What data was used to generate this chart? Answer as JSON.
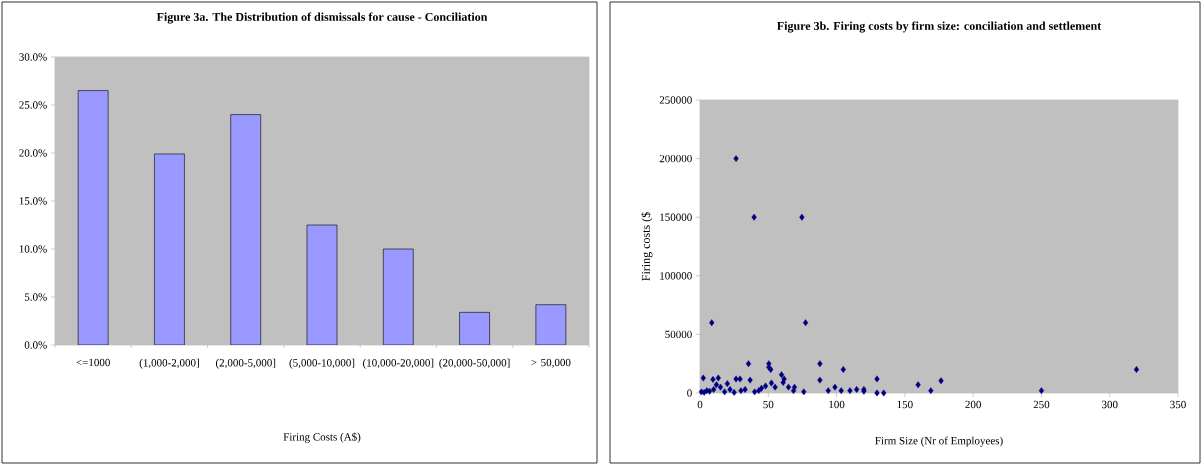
{
  "chart_data": [
    {
      "type": "bar",
      "title": "Figure 3a. The Distribution of dismissals for cause - Conciliation",
      "xlabel": "Firing Costs (A$)",
      "categories": [
        "<=1000",
        "(1,000-2,000]",
        "(2,000-5,000]",
        "(5,000-10,000]",
        "(10,000-20,000]",
        "(20,000-50,000]",
        "> 50,000"
      ],
      "values": [
        26.5,
        19.9,
        24.0,
        12.5,
        10.0,
        3.4,
        4.2
      ],
      "color": "#9999ff",
      "ylim": [
        0,
        30
      ],
      "yticks": [
        {
          "value": 0,
          "label": "0.0%"
        },
        {
          "value": 5,
          "label": "5.0%"
        },
        {
          "value": 10,
          "label": "10.0%"
        },
        {
          "value": 15,
          "label": "15.0%"
        },
        {
          "value": 20,
          "label": "20.0%"
        },
        {
          "value": 25,
          "label": "25.0%"
        },
        {
          "value": 30,
          "label": "30.0%"
        }
      ]
    },
    {
      "type": "scatter",
      "title": "Figure 3b. Firing costs by firm size: conciliation and settlement",
      "xlabel": "Firm Size (Nr of Employees)",
      "ylabel": "Firing costs ($",
      "x": [
        26.4,
        39.6,
        74.6,
        8.6,
        77.3,
        35.5,
        50.4,
        50.4,
        51.8,
        87.8,
        87.8,
        104.9,
        129.6,
        129.6,
        134.5,
        159.7,
        169,
        176.5,
        250,
        319.6,
        93.9,
        98.8,
        103.4,
        109.8,
        114.7,
        120,
        120,
        76,
        59.7,
        61.6,
        60.9,
        64.8,
        69.2,
        68.5,
        36.7,
        26.4,
        29.3,
        2.4,
        13.4,
        9.5,
        55,
        52.3,
        5,
        10,
        15,
        20,
        22,
        30,
        40,
        45,
        48,
        3,
        7,
        12,
        18,
        25,
        33,
        43,
        1
      ],
      "values": [
        200000,
        150000,
        150000,
        60000,
        60000,
        25000,
        25000,
        22000,
        20000,
        25000,
        11000,
        20000,
        12000,
        0,
        0,
        7000,
        2000,
        10500,
        2000,
        20000,
        2000,
        5000,
        2000,
        2000,
        3000,
        3000,
        1500,
        1000,
        15600,
        12000,
        9000,
        5000,
        5000,
        2000,
        11000,
        12000,
        12000,
        12800,
        12800,
        11600,
        5000,
        8500,
        2000,
        3000,
        5000,
        8000,
        3000,
        2000,
        1000,
        4000,
        6000,
        500,
        1500,
        7000,
        1000,
        500,
        3000,
        2000,
        1000
      ],
      "color": "#000080",
      "marker": "diamond",
      "xlim": [
        0,
        350
      ],
      "xticks": [
        0,
        50,
        100,
        150,
        200,
        250,
        300,
        350
      ],
      "ylim": [
        0,
        250000
      ],
      "yticks": [
        0,
        50000,
        100000,
        150000,
        200000,
        250000
      ]
    }
  ]
}
